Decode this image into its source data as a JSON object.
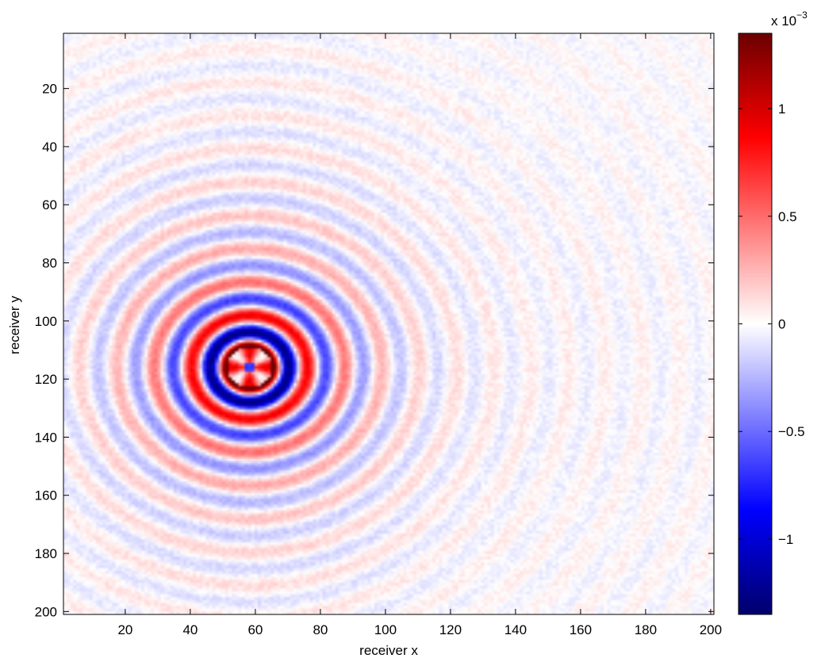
{
  "chart_data": {
    "type": "heatmap",
    "title": "",
    "xlabel": "receiver x",
    "ylabel": "receiver y",
    "xlim": [
      1,
      201
    ],
    "ylim": [
      1,
      201
    ],
    "y_reversed": true,
    "x_ticks": [
      20,
      40,
      60,
      80,
      100,
      120,
      140,
      160,
      180,
      200
    ],
    "y_ticks": [
      20,
      40,
      60,
      80,
      100,
      120,
      140,
      160,
      180,
      200
    ],
    "colorbar": {
      "colormap": "blue-white-red",
      "range": [
        -0.00135,
        0.00135
      ],
      "exponent_label": "x 10",
      "exponent": "−3",
      "ticks": [
        {
          "value": -1,
          "label": "−1"
        },
        {
          "value": -0.5,
          "label": "−0.5"
        },
        {
          "value": 0,
          "label": "0"
        },
        {
          "value": 0.5,
          "label": "0.5"
        },
        {
          "value": 1,
          "label": "1"
        }
      ]
    },
    "source_center": {
      "x": 58,
      "y": 116
    },
    "ring_wavelength": 11.5,
    "grid": false,
    "colors": {
      "max": "#6b0000",
      "high": "#ff0000",
      "mid": "#ffffff",
      "low": "#0000ff",
      "min": "#00006b"
    }
  }
}
